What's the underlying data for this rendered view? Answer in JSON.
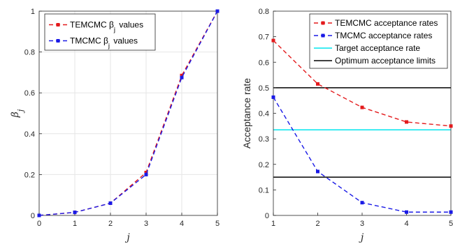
{
  "chart_data": [
    {
      "type": "line",
      "x": [
        0,
        1,
        2,
        3,
        4,
        5
      ],
      "xlim": [
        0,
        5
      ],
      "ylim": [
        0,
        1
      ],
      "xticks": [
        "0",
        "1",
        "2",
        "3",
        "4",
        "5"
      ],
      "yticks": [
        "0",
        "0.2",
        "0.4",
        "0.6",
        "0.8",
        "1"
      ],
      "xlabel": "j",
      "ylabel": "βj",
      "grid": true,
      "legend_position": "top-left",
      "series": [
        {
          "name": "TEMCMC βj values",
          "values": [
            0,
            0.015,
            0.06,
            0.21,
            0.685,
            1.0
          ],
          "color": "#e31a1c",
          "style": "dashed",
          "marker": "square"
        },
        {
          "name": "TMCMC βj values",
          "values": [
            0,
            0.015,
            0.06,
            0.2,
            0.675,
            1.0
          ],
          "color": "#1a1ae6",
          "style": "dashed",
          "marker": "square"
        }
      ]
    },
    {
      "type": "line",
      "x": [
        1,
        2,
        3,
        4,
        5
      ],
      "xlim": [
        1,
        5
      ],
      "ylim": [
        0,
        0.8
      ],
      "xticks": [
        "1",
        "2",
        "3",
        "4",
        "5"
      ],
      "yticks": [
        "0",
        "0.1",
        "0.2",
        "0.3",
        "0.4",
        "0.5",
        "0.6",
        "0.7",
        "0.8"
      ],
      "xlabel": "j",
      "ylabel": "Acceptance rate",
      "grid": false,
      "legend_position": "top-right",
      "series": [
        {
          "name": "TEMCMC acceptance rates",
          "values": [
            0.685,
            0.515,
            0.423,
            0.366,
            0.35
          ],
          "color": "#e31a1c",
          "style": "dashed",
          "marker": "square"
        },
        {
          "name": "TMCMC acceptance rates",
          "values": [
            0.463,
            0.172,
            0.05,
            0.013,
            0.013
          ],
          "color": "#1a1ae6",
          "style": "dashed",
          "marker": "square"
        }
      ],
      "reference_lines": [
        {
          "name": "Target acceptance rate",
          "values": [
            0.335
          ],
          "color": "#00e5ee"
        },
        {
          "name": "Optimum acceptance limits",
          "values": [
            0.15,
            0.5
          ],
          "color": "#000000"
        }
      ]
    }
  ]
}
